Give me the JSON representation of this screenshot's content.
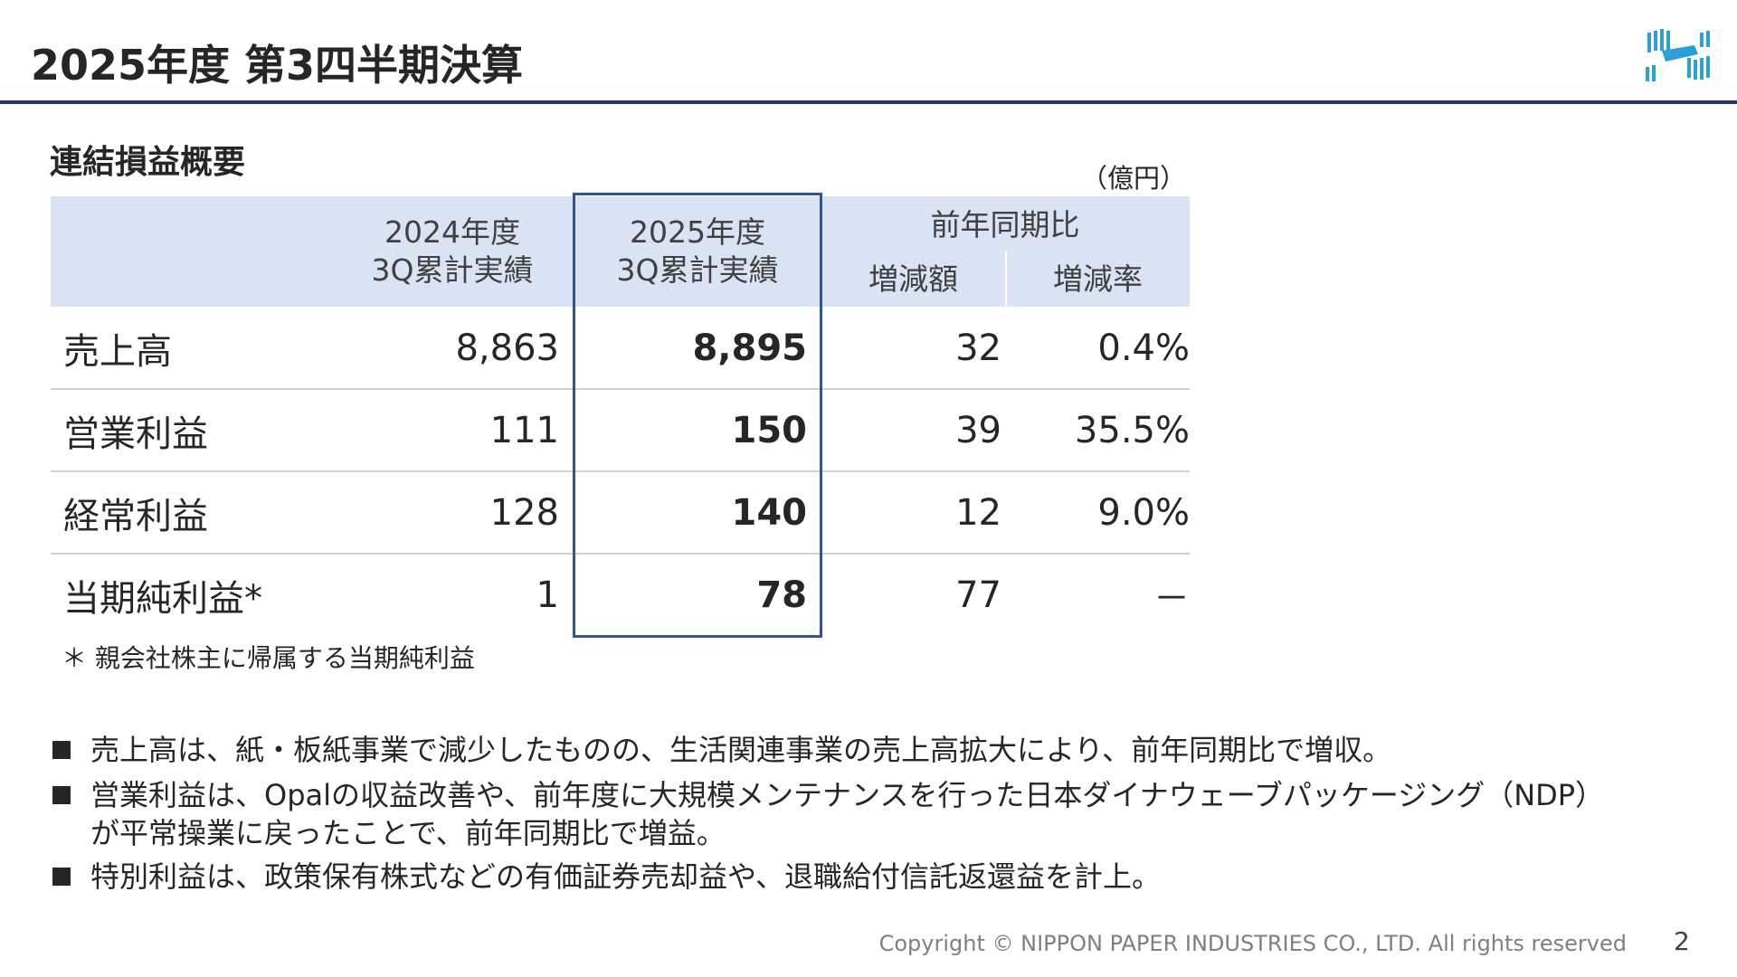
{
  "header": {
    "title": "2025年度 第3四半期決算"
  },
  "section_title": "連結損益概要",
  "unit": "（億円）",
  "table": {
    "columns": [
      "2024年度\n3Q累計実績",
      "2025年度\n3Q累計実績"
    ],
    "group_header": "前年同期比",
    "sub_columns": [
      "増減額",
      "増減率"
    ],
    "rows": [
      [
        "売上高",
        "8,863",
        "8,895",
        "32",
        "0.4%"
      ],
      [
        "営業利益",
        "111",
        "150",
        "39",
        "35.5%"
      ],
      [
        "経常利益",
        "128",
        "140",
        "12",
        "9.0%"
      ],
      [
        "当期純利益*",
        "1",
        "78",
        "77",
        "－"
      ]
    ]
  },
  "footnote": "＊ 親会社株主に帰属する当期純利益",
  "bullets": [
    "売上高は、紙・板紙事業で減少したものの、生活関連事業の売上高拡大により、前年同期比で増収。",
    "営業利益は、Opalの収益改善や、前年度に大規模メンテナンスを行った日本ダイナウェーブパッケージング（NDP）が平常操業に戻ったことで、前年同期比で増益。",
    "特別利益は、政策保有株式などの有価証券売却益や、退職給付信託返還益を計上。"
  ],
  "footer": {
    "copyright": "Copyright © NIPPON PAPER INDUSTRIES CO., LTD. All rights reserved",
    "page": "2"
  }
}
